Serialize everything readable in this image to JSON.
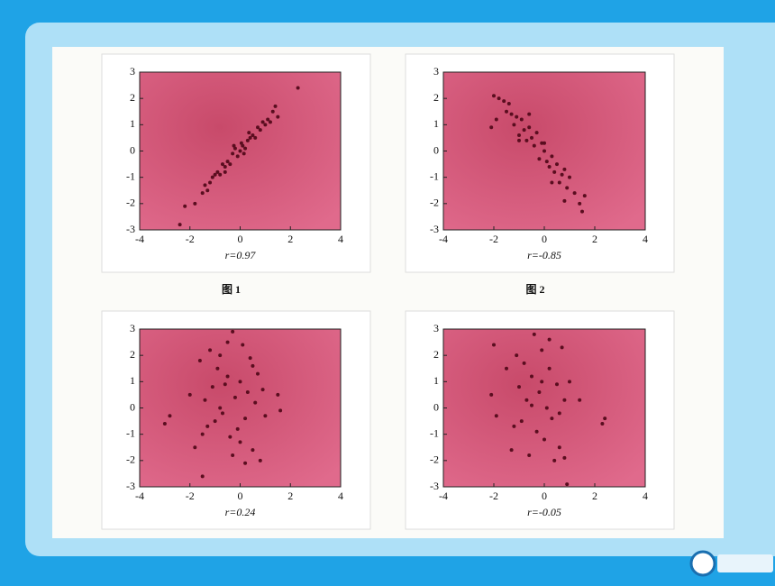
{
  "chart_data": [
    {
      "type": "scatter",
      "caption": "r=0.97",
      "figure_label": "图 1",
      "color": "#5a0d1f",
      "xlim": [
        -4,
        4
      ],
      "ylim": [
        -3,
        3
      ],
      "xticks": [
        -4,
        -2,
        0,
        2,
        4
      ],
      "yticks": [
        -3,
        -2,
        -1,
        0,
        1,
        2,
        3
      ],
      "x": [
        -2.4,
        -2.2,
        -1.8,
        -1.5,
        -1.4,
        -1.2,
        -1.1,
        -1.0,
        -0.9,
        -0.8,
        -0.7,
        -0.6,
        -0.5,
        -0.4,
        -0.3,
        -0.2,
        -0.1,
        0,
        0.05,
        0.1,
        0.2,
        0.3,
        0.4,
        0.5,
        0.6,
        0.7,
        0.8,
        0.9,
        1.0,
        1.1,
        1.2,
        1.3,
        1.4,
        1.5,
        2.3,
        -0.25,
        0.15,
        -0.6,
        0.35,
        -1.3
      ],
      "y": [
        -2.8,
        -2.1,
        -2.0,
        -1.6,
        -1.3,
        -1.2,
        -1.0,
        -0.9,
        -0.8,
        -0.9,
        -0.5,
        -0.6,
        -0.4,
        -0.5,
        -0.1,
        0.1,
        -0.2,
        0.0,
        0.3,
        0.2,
        0.1,
        0.4,
        0.5,
        0.6,
        0.5,
        0.9,
        0.8,
        1.1,
        1.0,
        1.2,
        1.1,
        1.5,
        1.7,
        1.3,
        2.4,
        0.2,
        -0.1,
        -0.8,
        0.7,
        -1.5
      ]
    },
    {
      "type": "scatter",
      "caption": "r=-0.85",
      "figure_label": "图 2",
      "color": "#5a0d1f",
      "xlim": [
        -4,
        4
      ],
      "ylim": [
        -3,
        3
      ],
      "xticks": [
        -4,
        -2,
        0,
        2,
        4
      ],
      "yticks": [
        -3,
        -2,
        -1,
        0,
        1,
        2,
        3
      ],
      "x": [
        -2.0,
        -1.9,
        -1.8,
        -1.6,
        -1.5,
        -1.4,
        -1.3,
        -1.2,
        -1.1,
        -1.0,
        -0.9,
        -0.8,
        -0.7,
        -0.6,
        -0.5,
        -0.4,
        -0.3,
        -0.2,
        -0.1,
        0,
        0.1,
        0.2,
        0.3,
        0.4,
        0.5,
        0.6,
        0.7,
        0.8,
        0.9,
        1.0,
        1.2,
        1.4,
        1.6,
        -2.1,
        -0.6,
        0.3,
        0.8,
        1.5,
        -1.0,
        0.0
      ],
      "y": [
        2.1,
        1.2,
        2.0,
        1.9,
        1.5,
        1.8,
        1.4,
        1.0,
        1.3,
        0.6,
        1.2,
        0.8,
        0.4,
        0.9,
        0.5,
        0.2,
        0.7,
        -0.3,
        0.3,
        0.0,
        -0.4,
        -0.6,
        -0.2,
        -0.8,
        -0.5,
        -1.2,
        -0.9,
        -0.7,
        -1.4,
        -1.0,
        -1.6,
        -2.0,
        -1.7,
        0.9,
        1.4,
        -1.2,
        -1.9,
        -2.3,
        0.4,
        0.3
      ]
    },
    {
      "type": "scatter",
      "caption": "r=0.24",
      "color": "#5a0d1f",
      "xlim": [
        -4,
        4
      ],
      "ylim": [
        -3,
        3
      ],
      "xticks": [
        -4,
        -2,
        0,
        2,
        4
      ],
      "yticks": [
        -3,
        -2,
        -1,
        0,
        1,
        2,
        3
      ],
      "x": [
        -3.0,
        -2.8,
        -2.0,
        -1.8,
        -1.6,
        -1.5,
        -1.4,
        -1.2,
        -1.1,
        -1.0,
        -0.9,
        -0.8,
        -0.7,
        -0.6,
        -0.5,
        -0.4,
        -0.3,
        -0.2,
        -0.1,
        0,
        0.1,
        0.2,
        0.3,
        0.4,
        0.5,
        0.6,
        0.7,
        0.8,
        0.9,
        1.0,
        1.5,
        1.6,
        -0.3,
        0.2,
        -1.3,
        -0.8,
        0.5,
        -0.5,
        0.0,
        -1.5
      ],
      "y": [
        -0.6,
        -0.3,
        0.5,
        -1.5,
        1.8,
        -1.0,
        0.3,
        2.2,
        0.8,
        -0.5,
        1.5,
        2.0,
        -0.2,
        0.9,
        1.2,
        -1.1,
        2.9,
        0.4,
        -0.8,
        1.0,
        2.4,
        -0.4,
        0.6,
        1.9,
        -1.6,
        0.2,
        1.3,
        -2.0,
        0.7,
        -0.3,
        0.5,
        -0.1,
        -1.8,
        -2.1,
        -0.7,
        0.0,
        1.6,
        2.5,
        -1.3,
        -2.6
      ]
    },
    {
      "type": "scatter",
      "caption": "r=-0.05",
      "color": "#5a0d1f",
      "xlim": [
        -4,
        4
      ],
      "ylim": [
        -3,
        3
      ],
      "xticks": [
        -4,
        -2,
        0,
        2,
        4
      ],
      "yticks": [
        -3,
        -2,
        -1,
        0,
        1,
        2,
        3
      ],
      "x": [
        -2.1,
        -2.0,
        -1.9,
        -1.5,
        -1.3,
        -1.1,
        -1.0,
        -0.9,
        -0.8,
        -0.7,
        -0.6,
        -0.5,
        -0.4,
        -0.3,
        -0.2,
        -0.1,
        0,
        0.1,
        0.2,
        0.3,
        0.4,
        0.5,
        0.6,
        0.7,
        0.8,
        0.9,
        1.0,
        1.4,
        2.4,
        2.3,
        -1.2,
        -0.5,
        0.2,
        0.6,
        -0.1,
        0.8
      ],
      "y": [
        0.5,
        2.4,
        -0.3,
        1.5,
        -1.6,
        2.0,
        0.8,
        -0.5,
        1.7,
        0.3,
        -1.8,
        1.2,
        2.8,
        -0.9,
        0.6,
        2.2,
        -1.2,
        0.0,
        1.5,
        -0.4,
        -2.0,
        0.9,
        -1.5,
        2.3,
        0.3,
        -2.9,
        1.0,
        0.3,
        -0.4,
        -0.6,
        -0.7,
        0.1,
        2.6,
        -0.2,
        1.0,
        -1.9
      ]
    }
  ]
}
